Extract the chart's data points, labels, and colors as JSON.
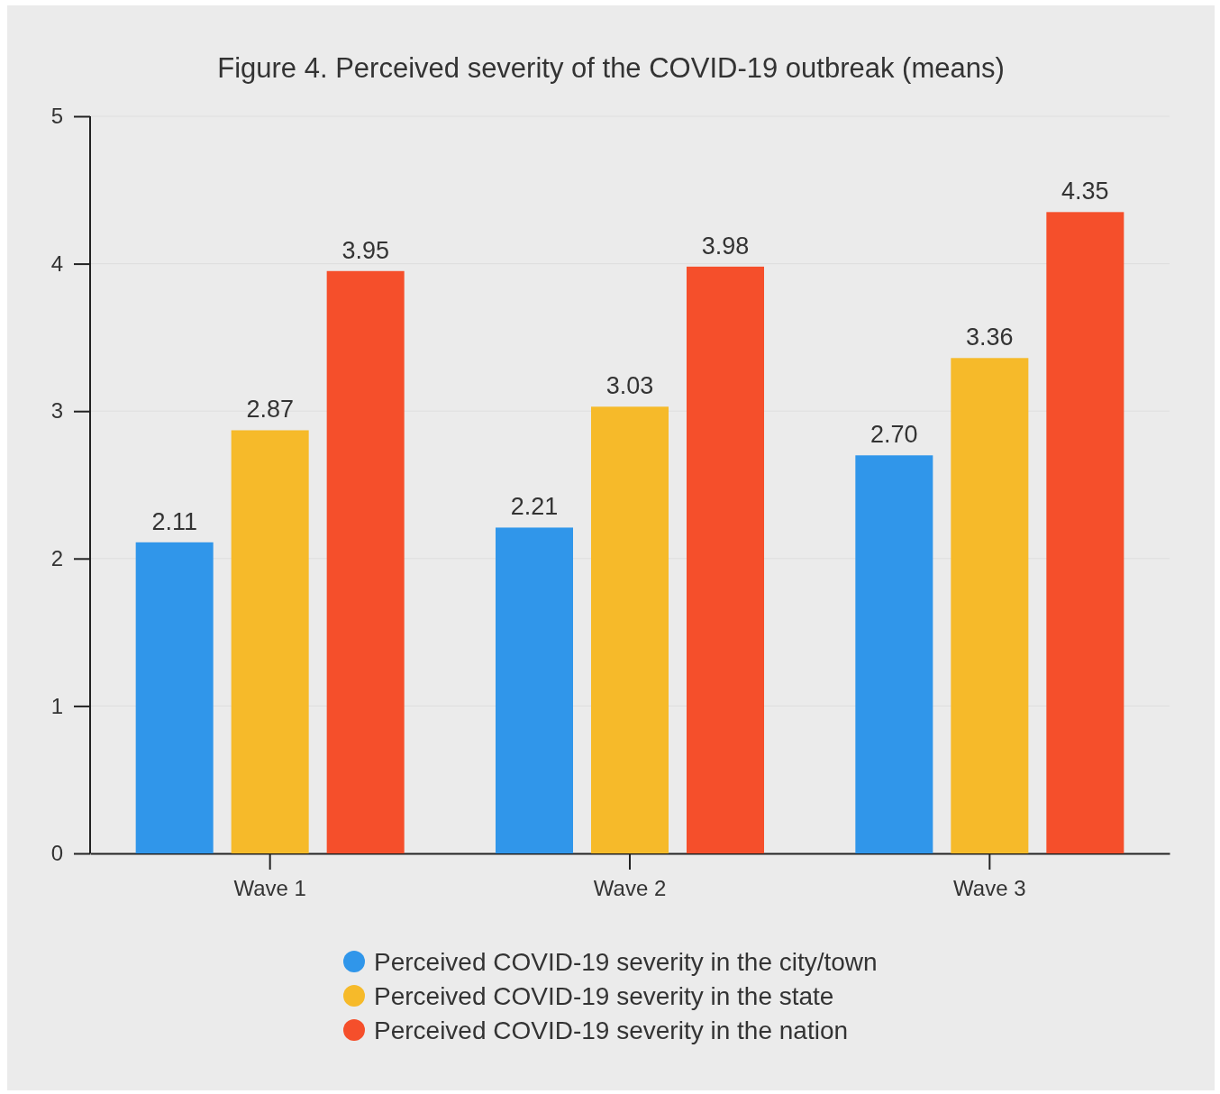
{
  "chart_data": {
    "type": "bar",
    "title": "Figure 4. Perceived severity of the COVID-19 outbreak (means)",
    "categories": [
      "Wave 1",
      "Wave 2",
      "Wave 3"
    ],
    "series": [
      {
        "name": "Perceived COVID-19 severity in the city/town",
        "color": "#3096ea",
        "values": [
          2.11,
          2.21,
          2.7
        ]
      },
      {
        "name": "Perceived COVID-19 severity in the state",
        "color": "#f6ba2a",
        "values": [
          2.87,
          3.03,
          3.36
        ]
      },
      {
        "name": "Perceived COVID-19 severity in the nation",
        "color": "#f54f2b",
        "values": [
          3.95,
          3.98,
          4.35
        ]
      }
    ],
    "value_labels": [
      [
        "2.11",
        "2.21",
        "2.70"
      ],
      [
        "2.87",
        "3.03",
        "3.36"
      ],
      [
        "3.95",
        "3.98",
        "4.35"
      ]
    ],
    "ylim": [
      0,
      5
    ],
    "yticks": [
      0,
      1,
      2,
      3,
      4,
      5
    ],
    "grid": "y",
    "legend": "bottom"
  }
}
